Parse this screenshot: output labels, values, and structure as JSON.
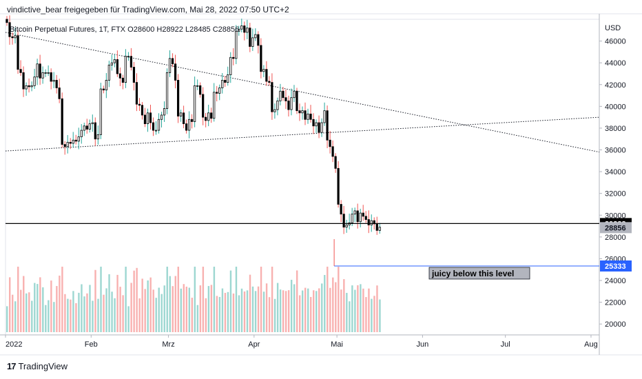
{
  "header": {
    "text": "vindictive_bear freigegeben für TradingView.com, Mai 28, 2022 07:50 UTC+2"
  },
  "footer": {
    "brand": "TradingView"
  },
  "chart_data": {
    "type": "candlestick",
    "title": "Bitcoin Perpetual Futures, 1T, FTX  O28600  H28922  L28485  C28856",
    "currency": "USD",
    "ylim": [
      19000,
      48000
    ],
    "y_ticks": [
      20000,
      22000,
      24000,
      26000,
      28000,
      30000,
      32000,
      34000,
      36000,
      38000,
      40000,
      42000,
      44000,
      46000
    ],
    "x_ticks": [
      "2022",
      "Feb",
      "Mrz",
      "Apr",
      "Mai",
      "Jun",
      "Jul",
      "Aug"
    ],
    "x_tick_days": [
      0,
      31,
      59,
      90,
      120,
      151,
      181,
      212
    ],
    "x_range_days": [
      0,
      215
    ],
    "start_date": "2022-01-01",
    "colors": {
      "up": "#26a69a",
      "down": "#ef5350",
      "candle": "#000000"
    },
    "close_prices": [
      47700,
      46400,
      46300,
      46500,
      43400,
      43100,
      41600,
      41900,
      41800,
      41900,
      42700,
      43900,
      42600,
      43100,
      43100,
      43100,
      42300,
      42400,
      41700,
      40700,
      36500,
      36300,
      36700,
      36600,
      36900,
      36800,
      37200,
      37800,
      38200,
      37900,
      38400,
      38500,
      37000,
      37400,
      41600,
      41500,
      42400,
      43800,
      44000,
      44300,
      43000,
      42600,
      42200,
      44600,
      44600,
      43600,
      42200,
      40200,
      40100,
      39200,
      38400,
      39400,
      38500,
      37800,
      37800,
      38800,
      39200,
      39800,
      43100,
      44400,
      43900,
      42400,
      39100,
      39400,
      38400,
      37800,
      38800,
      38600,
      41900,
      41900,
      41100,
      39000,
      38700,
      39400,
      38900,
      41300,
      41200,
      41700,
      42400,
      42200,
      42900,
      44500,
      44400,
      46900,
      47100,
      47400,
      46800,
      47200,
      45500,
      46300,
      46600,
      45600,
      43200,
      43400,
      42300,
      42200,
      39500,
      39700,
      40500,
      41400,
      40800,
      40500,
      39700,
      40800,
      41400,
      39600,
      39400,
      39600,
      38800,
      39300,
      38800,
      38200,
      38500,
      37600,
      38500,
      39600,
      36900,
      36300,
      35400,
      34300,
      31000,
      30100,
      28900,
      29100,
      29300,
      30100,
      30400,
      29400,
      30200,
      29900,
      29600,
      29100,
      29500,
      29200,
      28600,
      28900
    ],
    "annotations": {
      "line_label": "juicy below this level"
    },
    "price_labels": {
      "resistance": "29233",
      "last": "28856",
      "support": "25333"
    },
    "levels": {
      "resistance": 29233,
      "last": 28856,
      "support": 25333
    },
    "trendlines": [
      {
        "from": [
          0,
          46800
        ],
        "to": [
          215,
          35800
        ]
      },
      {
        "from": [
          0,
          35900
        ],
        "to": [
          215,
          39000
        ]
      }
    ],
    "volume_profile": "relative"
  }
}
